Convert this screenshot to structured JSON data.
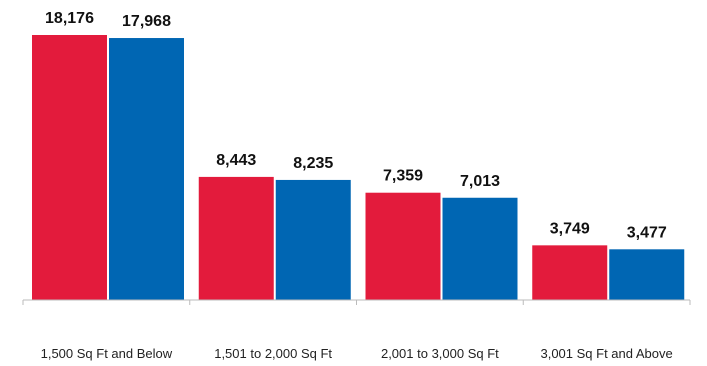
{
  "chart_data": {
    "type": "bar",
    "categories": [
      "1,500 Sq Ft and Below",
      "1,501 to 2,000 Sq Ft",
      "2,001 to 3,000 Sq Ft",
      "3,001 Sq Ft and Above"
    ],
    "series": [
      {
        "values": [
          18176,
          8443,
          7359,
          3749
        ],
        "value_labels": [
          "18,176",
          "8,443",
          "7,359",
          "3,749"
        ],
        "color": "#e31b3c"
      },
      {
        "values": [
          17968,
          8235,
          7013,
          3477
        ],
        "value_labels": [
          "17,968",
          "8,235",
          "7,013",
          "3,477"
        ],
        "color": "#0066b3"
      }
    ],
    "title": "",
    "xlabel": "",
    "ylabel": "",
    "ylim": [
      0,
      18176
    ],
    "grid": false,
    "legend": "none",
    "axis_color": "#bbbbbb"
  }
}
